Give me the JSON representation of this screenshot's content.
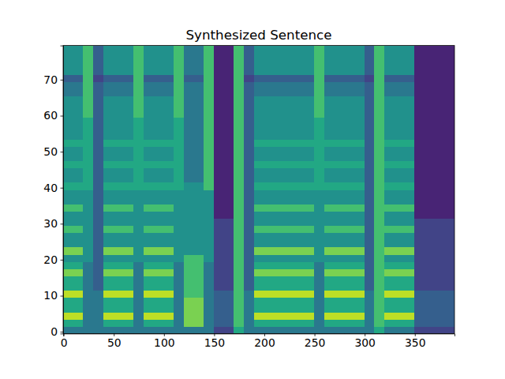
{
  "chart_data": {
    "type": "heatmap",
    "title": "Synthesized Sentence",
    "xlim": [
      -0.5,
      389.5
    ],
    "ylim": [
      -0.5,
      79.5
    ],
    "xticks": [
      0,
      50,
      100,
      150,
      200,
      250,
      300,
      350
    ],
    "yticks": [
      0,
      10,
      20,
      30,
      40,
      50,
      60,
      70
    ],
    "zlim": [
      0,
      10
    ],
    "x_bins": [
      -0.5,
      9.5,
      19.5,
      29.5,
      39.5,
      49.5,
      59.5,
      69.5,
      79.5,
      89.5,
      99.5,
      109.5,
      119.5,
      129.5,
      139.5,
      149.5,
      159.5,
      169.5,
      179.5,
      189.5,
      199.5,
      209.5,
      219.5,
      229.5,
      239.5,
      249.5,
      259.5,
      269.5,
      279.5,
      289.5,
      299.5,
      309.5,
      319.5,
      329.5,
      339.5,
      349.5,
      359.5,
      369.5,
      379.5,
      389.5
    ],
    "y_bins": [
      -0.5,
      1.5,
      3.5,
      5.5,
      7.5,
      9.5,
      11.5,
      13.5,
      15.5,
      17.5,
      19.5,
      21.5,
      23.5,
      25.5,
      27.5,
      29.5,
      31.5,
      33.5,
      35.5,
      37.5,
      39.5,
      41.5,
      43.5,
      45.5,
      47.5,
      49.5,
      51.5,
      53.5,
      55.5,
      57.5,
      59.5,
      61.5,
      63.5,
      65.5,
      67.5,
      69.5,
      71.5,
      73.5,
      75.5,
      77.5,
      79.5
    ],
    "z": [
      [
        4,
        4,
        4,
        4,
        4,
        4,
        4,
        4,
        4,
        4,
        4,
        4,
        4,
        4,
        4,
        2,
        2,
        6,
        4,
        4,
        4,
        4,
        4,
        4,
        4,
        4,
        4,
        4,
        4,
        4,
        4,
        6,
        4,
        4,
        4,
        2,
        2,
        2,
        2
      ],
      [
        6,
        6,
        4,
        4,
        6,
        6,
        6,
        4,
        6,
        6,
        6,
        4,
        8,
        8,
        4,
        3,
        3,
        7,
        4,
        6,
        6,
        6,
        6,
        6,
        6,
        4,
        6,
        6,
        6,
        6,
        4,
        7,
        6,
        6,
        6,
        3,
        3,
        3,
        3
      ],
      [
        9,
        9,
        4,
        4,
        9,
        9,
        9,
        4,
        9,
        9,
        9,
        4,
        8,
        8,
        4,
        3,
        3,
        7,
        4,
        9,
        9,
        9,
        9,
        9,
        9,
        4,
        9,
        9,
        9,
        9,
        4,
        7,
        9,
        9,
        9,
        3,
        3,
        3,
        3
      ],
      [
        6,
        6,
        4,
        4,
        6,
        6,
        6,
        4,
        6,
        6,
        6,
        4,
        8,
        8,
        4,
        3,
        3,
        7,
        4,
        6,
        6,
        6,
        6,
        6,
        6,
        4,
        6,
        6,
        6,
        6,
        4,
        7,
        6,
        6,
        6,
        3,
        3,
        3,
        3
      ],
      [
        6,
        6,
        4,
        4,
        6,
        6,
        6,
        4,
        6,
        6,
        6,
        4,
        8,
        8,
        4,
        3,
        3,
        7,
        4,
        6,
        6,
        6,
        6,
        6,
        6,
        4,
        6,
        6,
        6,
        6,
        4,
        7,
        6,
        6,
        6,
        3,
        3,
        3,
        3
      ],
      [
        9,
        9,
        4,
        4,
        9,
        9,
        9,
        4,
        9,
        9,
        9,
        4,
        7,
        7,
        4,
        3,
        3,
        7,
        4,
        9,
        9,
        9,
        9,
        9,
        9,
        4,
        9,
        9,
        9,
        9,
        4,
        7,
        9,
        9,
        9,
        3,
        3,
        3,
        3
      ],
      [
        6,
        6,
        4,
        3,
        6,
        6,
        6,
        4,
        6,
        6,
        6,
        4,
        7,
        7,
        4,
        2,
        2,
        7,
        3,
        6,
        6,
        6,
        6,
        6,
        6,
        4,
        6,
        6,
        6,
        6,
        3,
        7,
        6,
        6,
        6,
        2,
        2,
        2,
        2
      ],
      [
        6,
        6,
        4,
        3,
        6,
        6,
        6,
        4,
        6,
        6,
        6,
        4,
        7,
        7,
        4,
        2,
        2,
        7,
        3,
        6,
        6,
        6,
        6,
        6,
        6,
        4,
        6,
        6,
        6,
        6,
        3,
        7,
        6,
        6,
        6,
        2,
        2,
        2,
        2
      ],
      [
        8,
        8,
        4,
        3,
        8,
        8,
        8,
        4,
        8,
        8,
        8,
        4,
        7,
        7,
        4,
        2,
        2,
        7,
        3,
        8,
        8,
        8,
        8,
        8,
        8,
        4,
        8,
        8,
        8,
        8,
        3,
        7,
        8,
        8,
        8,
        2,
        2,
        2,
        2
      ],
      [
        6,
        6,
        4,
        3,
        6,
        6,
        6,
        4,
        6,
        6,
        6,
        4,
        7,
        7,
        4,
        2,
        2,
        7,
        3,
        6,
        6,
        6,
        6,
        6,
        6,
        4,
        6,
        6,
        6,
        6,
        3,
        7,
        6,
        6,
        6,
        2,
        2,
        2,
        2
      ],
      [
        5,
        5,
        5,
        3,
        5,
        5,
        5,
        5,
        5,
        5,
        5,
        5,
        7,
        7,
        5,
        2,
        2,
        7,
        3,
        5,
        5,
        5,
        5,
        5,
        5,
        5,
        5,
        5,
        5,
        5,
        3,
        7,
        5,
        5,
        5,
        2,
        2,
        2,
        2
      ],
      [
        8,
        8,
        5,
        3,
        8,
        8,
        8,
        5,
        8,
        8,
        8,
        5,
        5,
        5,
        5,
        2,
        2,
        7,
        3,
        8,
        8,
        8,
        8,
        8,
        8,
        5,
        8,
        8,
        8,
        8,
        3,
        7,
        8,
        8,
        8,
        2,
        2,
        2,
        2
      ],
      [
        5,
        5,
        5,
        3,
        5,
        5,
        5,
        5,
        5,
        5,
        5,
        5,
        5,
        5,
        5,
        2,
        2,
        7,
        3,
        5,
        5,
        5,
        5,
        5,
        5,
        5,
        5,
        5,
        5,
        5,
        3,
        7,
        5,
        5,
        5,
        2,
        2,
        2,
        2
      ],
      [
        5,
        5,
        5,
        3,
        5,
        5,
        5,
        5,
        5,
        5,
        5,
        5,
        5,
        5,
        5,
        2,
        2,
        7,
        3,
        5,
        5,
        5,
        5,
        5,
        5,
        5,
        5,
        5,
        5,
        5,
        3,
        7,
        5,
        5,
        5,
        2,
        2,
        2,
        2
      ],
      [
        7,
        7,
        5,
        3,
        7,
        7,
        7,
        5,
        7,
        7,
        7,
        5,
        5,
        5,
        5,
        2,
        2,
        7,
        3,
        7,
        7,
        7,
        7,
        7,
        7,
        5,
        7,
        7,
        7,
        7,
        3,
        7,
        7,
        7,
        7,
        2,
        2,
        2,
        2
      ],
      [
        5,
        5,
        5,
        3,
        5,
        5,
        5,
        5,
        5,
        5,
        5,
        5,
        5,
        5,
        5,
        2,
        2,
        7,
        3,
        5,
        5,
        5,
        5,
        5,
        5,
        5,
        5,
        5,
        5,
        5,
        3,
        7,
        5,
        5,
        5,
        2,
        2,
        2,
        2
      ],
      [
        5,
        5,
        5,
        3,
        5,
        5,
        5,
        5,
        5,
        5,
        5,
        5,
        5,
        5,
        5,
        1,
        1,
        7,
        3,
        5,
        5,
        5,
        5,
        5,
        5,
        5,
        5,
        5,
        5,
        5,
        3,
        7,
        5,
        5,
        5,
        1,
        1,
        1,
        1
      ],
      [
        7,
        7,
        5,
        3,
        7,
        7,
        7,
        5,
        7,
        7,
        7,
        5,
        5,
        5,
        5,
        1,
        1,
        7,
        3,
        7,
        7,
        7,
        7,
        7,
        7,
        5,
        7,
        7,
        7,
        7,
        3,
        7,
        7,
        7,
        7,
        1,
        1,
        1,
        1
      ],
      [
        5,
        5,
        5,
        3,
        5,
        5,
        5,
        5,
        5,
        5,
        5,
        5,
        5,
        5,
        5,
        1,
        1,
        7,
        3,
        5,
        5,
        5,
        5,
        5,
        5,
        5,
        5,
        5,
        5,
        5,
        3,
        7,
        5,
        5,
        5,
        1,
        1,
        1,
        1
      ],
      [
        5,
        5,
        5,
        3,
        5,
        5,
        5,
        5,
        5,
        5,
        5,
        5,
        5,
        5,
        5,
        1,
        1,
        7,
        3,
        5,
        5,
        5,
        5,
        5,
        5,
        5,
        5,
        5,
        5,
        5,
        3,
        7,
        5,
        5,
        5,
        1,
        1,
        1,
        1
      ],
      [
        6,
        6,
        6,
        3,
        6,
        6,
        6,
        6,
        6,
        6,
        6,
        6,
        5,
        5,
        7,
        1,
        1,
        7,
        3,
        6,
        6,
        6,
        6,
        6,
        6,
        6,
        6,
        6,
        6,
        6,
        3,
        7,
        6,
        6,
        6,
        1,
        1,
        1,
        1
      ],
      [
        5,
        5,
        6,
        3,
        5,
        5,
        5,
        6,
        5,
        5,
        5,
        6,
        4,
        4,
        7,
        1,
        1,
        7,
        3,
        5,
        5,
        5,
        5,
        5,
        5,
        6,
        5,
        5,
        5,
        5,
        3,
        7,
        5,
        5,
        5,
        1,
        1,
        1,
        1
      ],
      [
        5,
        5,
        6,
        3,
        5,
        5,
        5,
        6,
        5,
        5,
        5,
        6,
        4,
        4,
        7,
        1,
        1,
        7,
        3,
        5,
        5,
        5,
        5,
        5,
        5,
        6,
        5,
        5,
        5,
        5,
        3,
        7,
        5,
        5,
        5,
        1,
        1,
        1,
        1
      ],
      [
        6,
        6,
        6,
        3,
        6,
        6,
        6,
        6,
        6,
        6,
        6,
        6,
        4,
        4,
        7,
        1,
        1,
        7,
        3,
        6,
        6,
        6,
        6,
        6,
        6,
        6,
        6,
        6,
        6,
        6,
        3,
        7,
        6,
        6,
        6,
        1,
        1,
        1,
        1
      ],
      [
        5,
        5,
        6,
        3,
        5,
        5,
        5,
        6,
        5,
        5,
        5,
        6,
        4,
        4,
        7,
        1,
        1,
        7,
        3,
        5,
        5,
        5,
        5,
        5,
        5,
        6,
        5,
        5,
        5,
        5,
        3,
        7,
        5,
        5,
        5,
        1,
        1,
        1,
        1
      ],
      [
        5,
        5,
        6,
        3,
        5,
        5,
        5,
        6,
        5,
        5,
        5,
        6,
        4,
        4,
        7,
        1,
        1,
        7,
        3,
        5,
        5,
        5,
        5,
        5,
        5,
        6,
        5,
        5,
        5,
        5,
        3,
        7,
        5,
        5,
        5,
        1,
        1,
        1,
        1
      ],
      [
        6,
        6,
        6,
        3,
        6,
        6,
        6,
        6,
        6,
        6,
        6,
        6,
        4,
        4,
        7,
        1,
        1,
        7,
        3,
        6,
        6,
        6,
        6,
        6,
        6,
        6,
        6,
        6,
        6,
        6,
        3,
        7,
        6,
        6,
        6,
        1,
        1,
        1,
        1
      ],
      [
        5,
        5,
        6,
        3,
        5,
        5,
        5,
        6,
        5,
        5,
        5,
        6,
        4,
        4,
        7,
        1,
        1,
        7,
        3,
        5,
        5,
        5,
        5,
        5,
        5,
        6,
        5,
        5,
        5,
        5,
        3,
        7,
        5,
        5,
        5,
        1,
        1,
        1,
        1
      ],
      [
        5,
        5,
        6,
        3,
        5,
        5,
        5,
        6,
        5,
        5,
        5,
        6,
        4,
        4,
        7,
        1,
        1,
        7,
        3,
        5,
        5,
        5,
        5,
        5,
        5,
        6,
        5,
        5,
        5,
        5,
        3,
        7,
        5,
        5,
        5,
        1,
        1,
        1,
        1
      ],
      [
        5,
        5,
        6,
        3,
        5,
        5,
        5,
        6,
        5,
        5,
        5,
        6,
        4,
        4,
        7,
        1,
        1,
        7,
        3,
        5,
        5,
        5,
        5,
        5,
        5,
        6,
        5,
        5,
        5,
        5,
        3,
        7,
        5,
        5,
        5,
        1,
        1,
        1,
        1
      ],
      [
        5,
        5,
        7,
        3,
        5,
        5,
        5,
        7,
        5,
        5,
        5,
        7,
        4,
        4,
        7,
        1,
        1,
        7,
        3,
        5,
        5,
        5,
        5,
        5,
        5,
        7,
        5,
        5,
        5,
        5,
        3,
        7,
        5,
        5,
        5,
        1,
        1,
        1,
        1
      ],
      [
        5,
        5,
        7,
        3,
        5,
        5,
        5,
        7,
        5,
        5,
        5,
        7,
        4,
        4,
        7,
        1,
        1,
        7,
        3,
        5,
        5,
        5,
        5,
        5,
        5,
        7,
        5,
        5,
        5,
        5,
        3,
        7,
        5,
        5,
        5,
        1,
        1,
        1,
        1
      ],
      [
        5,
        5,
        7,
        3,
        5,
        5,
        5,
        7,
        5,
        5,
        5,
        7,
        4,
        4,
        7,
        1,
        1,
        7,
        3,
        5,
        5,
        5,
        5,
        5,
        5,
        7,
        5,
        5,
        5,
        5,
        3,
        7,
        5,
        5,
        5,
        1,
        1,
        1,
        1
      ],
      [
        4,
        4,
        7,
        3,
        4,
        4,
        4,
        7,
        4,
        4,
        4,
        7,
        4,
        4,
        7,
        1,
        1,
        7,
        3,
        4,
        4,
        4,
        4,
        4,
        4,
        7,
        4,
        4,
        4,
        4,
        3,
        7,
        4,
        4,
        4,
        1,
        1,
        1,
        1
      ],
      [
        4,
        4,
        7,
        3,
        4,
        4,
        4,
        7,
        4,
        4,
        4,
        7,
        4,
        4,
        7,
        1,
        1,
        7,
        3,
        4,
        4,
        4,
        4,
        4,
        4,
        7,
        4,
        4,
        4,
        4,
        3,
        7,
        4,
        4,
        4,
        1,
        1,
        1,
        1
      ],
      [
        3,
        3,
        7,
        2,
        3,
        3,
        3,
        7,
        3,
        3,
        3,
        7,
        3,
        3,
        7,
        1,
        1,
        7,
        2,
        3,
        3,
        3,
        3,
        3,
        3,
        7,
        3,
        3,
        3,
        3,
        2,
        7,
        3,
        3,
        3,
        1,
        1,
        1,
        1
      ],
      [
        5,
        5,
        7,
        3,
        5,
        5,
        5,
        7,
        5,
        5,
        5,
        7,
        4,
        4,
        7,
        1,
        1,
        7,
        3,
        5,
        5,
        5,
        5,
        5,
        5,
        7,
        5,
        5,
        5,
        5,
        3,
        7,
        5,
        5,
        5,
        1,
        1,
        1,
        1
      ],
      [
        5,
        5,
        7,
        3,
        5,
        5,
        5,
        7,
        5,
        5,
        5,
        7,
        4,
        4,
        7,
        1,
        1,
        7,
        3,
        5,
        5,
        5,
        5,
        5,
        5,
        7,
        5,
        5,
        5,
        5,
        3,
        7,
        5,
        5,
        5,
        1,
        1,
        1,
        1
      ],
      [
        5,
        5,
        7,
        3,
        5,
        5,
        5,
        7,
        5,
        5,
        5,
        7,
        4,
        4,
        7,
        1,
        1,
        7,
        3,
        5,
        5,
        5,
        5,
        5,
        5,
        7,
        5,
        5,
        5,
        5,
        3,
        7,
        5,
        5,
        5,
        1,
        1,
        1,
        1
      ],
      [
        5,
        5,
        7,
        3,
        5,
        5,
        5,
        7,
        5,
        5,
        5,
        7,
        4,
        4,
        7,
        1,
        1,
        7,
        3,
        5,
        5,
        5,
        5,
        5,
        5,
        7,
        5,
        5,
        5,
        5,
        3,
        7,
        5,
        5,
        5,
        1,
        1,
        1,
        1
      ]
    ]
  }
}
